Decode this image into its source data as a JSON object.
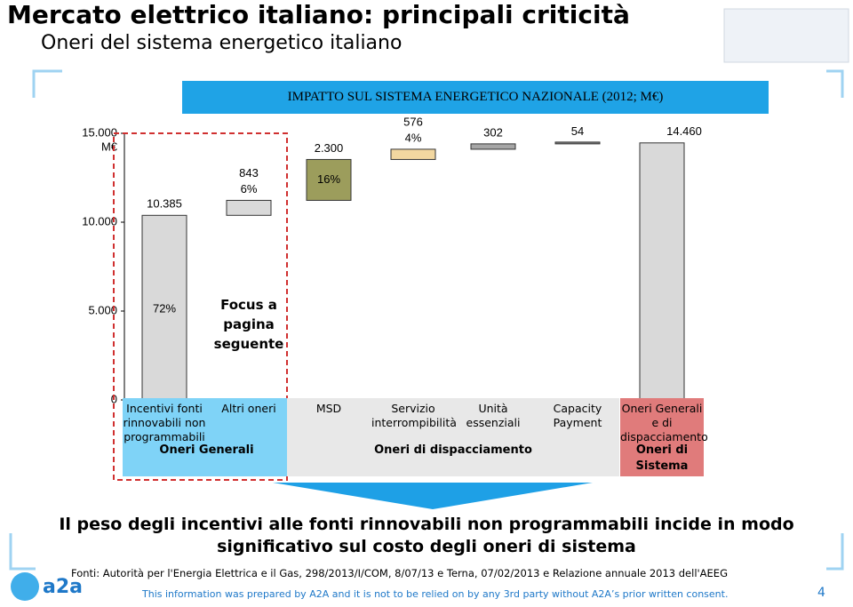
{
  "header": {
    "title": "Mercato elettrico italiano: principali criticità",
    "subtitle": "Oneri del sistema energetico italiano"
  },
  "chart_data": {
    "type": "waterfall",
    "title": "IMPATTO SUL SISTEMA ENERGETICO NAZIONALE (2012; M€)",
    "y_unit": "M€",
    "categories": [
      "Incentivi fonti rinnovabili non programmabili",
      "Altri oneri",
      "MSD",
      "Servizio interrompibilità",
      "Unità essenziali",
      "Capacity Payment",
      "Oneri Generali e di dispacciamento"
    ],
    "values": [
      10385,
      843,
      2300,
      576,
      302,
      54,
      14460
    ],
    "value_labels": [
      "10.385",
      "843",
      "2.300",
      "576",
      "302",
      "54",
      "14.460"
    ],
    "share_labels": [
      "72%",
      "6%",
      "16%",
      "4%",
      null,
      null,
      null
    ],
    "colors": [
      "#d9d9d9",
      "#d9d9d9",
      "#9c9d5c",
      "#f2d7a0",
      "#a6a6a6",
      "#7f7f7f",
      "#d9d9d9"
    ],
    "total_last": true,
    "groups": [
      {
        "label": "Oneri Generali",
        "start": 0,
        "end": 1,
        "color": "#7fd3f7"
      },
      {
        "label": "Oneri di dispacciamento",
        "start": 2,
        "end": 5,
        "color": "#e8e8e8"
      },
      {
        "label": "Oneri di Sistema",
        "start": 6,
        "end": 6,
        "color": "#e07b7b"
      }
    ],
    "ylim": [
      0,
      15000
    ],
    "yticks": [
      0,
      {
        "value": 5000,
        "label": "5.000"
      },
      {
        "value": 10000,
        "label": "10.000"
      },
      {
        "value": 15000,
        "label": "15.000"
      }
    ],
    "annotation": "Focus a pagina seguente"
  },
  "conclusion": "Il peso degli incentivi alle fonti rinnovabili non programmabili incide in modo significativo sul costo degli oneri di sistema",
  "source": "Fonti: Autorità per l'Energia Elettrica e il Gas, 298/2013/I/COM, 8/07/13 e Terna, 07/02/2013 e Relazione annuale 2013 dell'AEEG",
  "disclaimer": "This information was prepared by A2A and it is not to be relied on by any 3rd party without A2A’s prior written consent.",
  "page_number": "4",
  "logo": "a2a"
}
